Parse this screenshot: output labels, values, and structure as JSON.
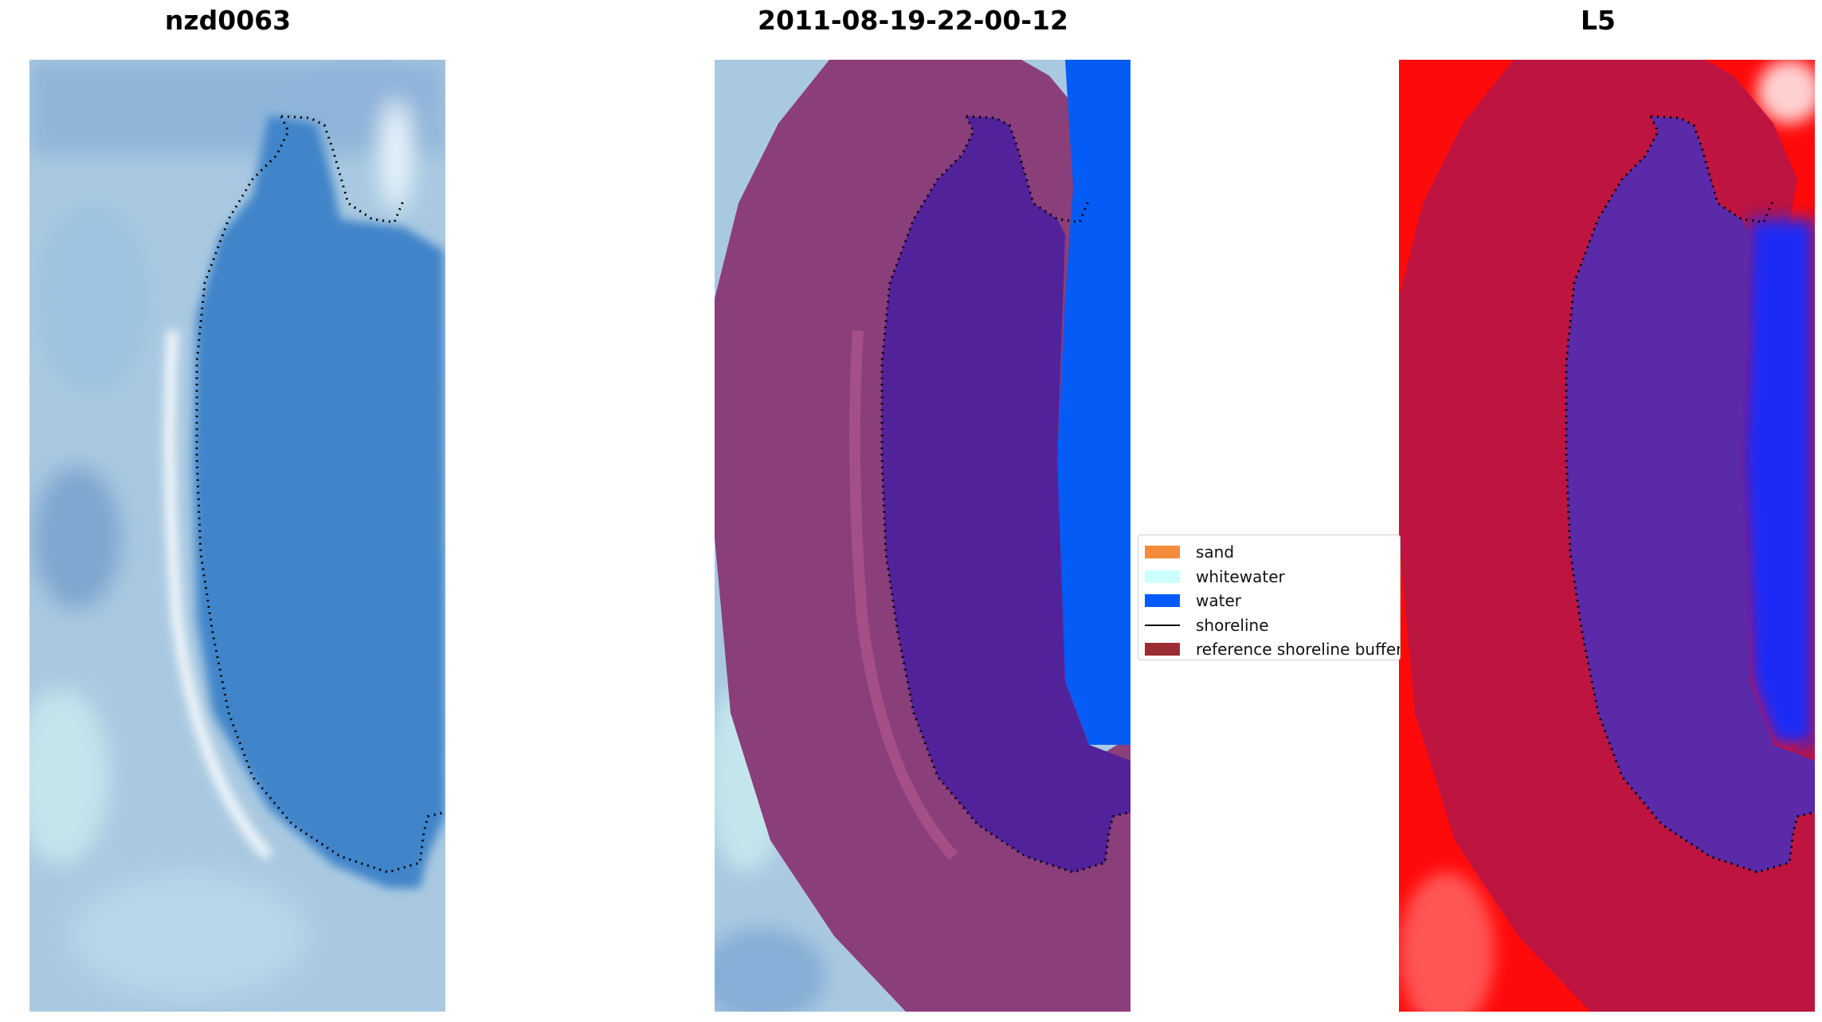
{
  "panels": [
    {
      "title": "nzd0063"
    },
    {
      "title": "2011-08-19-22-00-12"
    },
    {
      "title": "L5"
    }
  ],
  "legend": {
    "items": [
      {
        "label": "sand",
        "kind": "patch",
        "color": "#f58b3c"
      },
      {
        "label": "whitewater",
        "kind": "patch",
        "color": "#ccffff"
      },
      {
        "label": "water",
        "kind": "patch",
        "color": "#005cff"
      },
      {
        "label": "shoreline",
        "kind": "line",
        "color": "#000000"
      },
      {
        "label": "reference shoreline buffer",
        "kind": "patch",
        "color": "#9b2d35"
      }
    ]
  },
  "colors": {
    "imagery_water": "#3f84c9",
    "imagery_land": "#a9c9e1",
    "buffer_overlay": "#8a3e7a",
    "classified_water": "#055bf5",
    "inner_water_overlay": "#52229a",
    "index_red": "#ff0a0a",
    "index_buffer": "#be1440",
    "index_inner": "#5a2aa8",
    "index_blue": "#1e2cf5"
  }
}
